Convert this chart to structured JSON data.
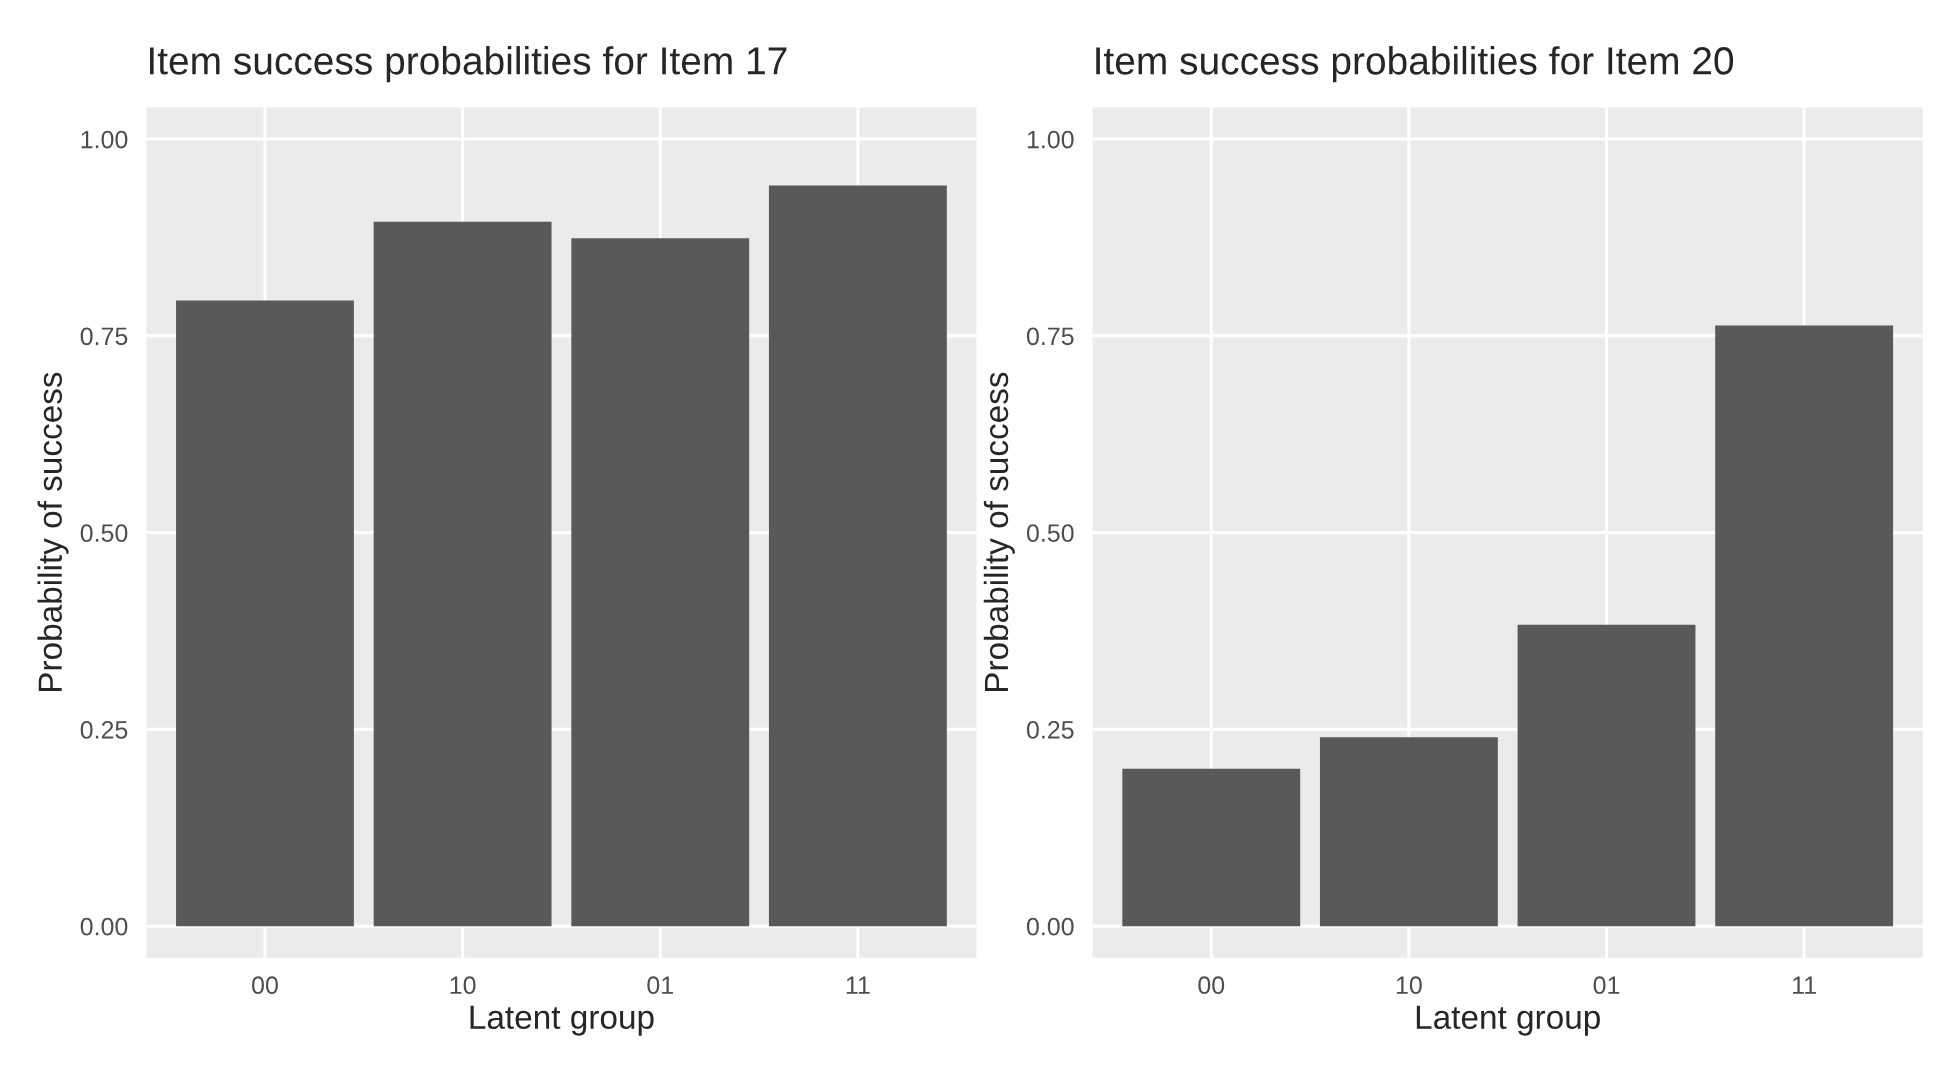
{
  "chart_data": [
    {
      "type": "bar",
      "title": "Item success probabilities for Item 17",
      "xlabel": "Latent group",
      "ylabel": "Probability of success",
      "categories": [
        "00",
        "10",
        "01",
        "11"
      ],
      "values": [
        0.795,
        0.895,
        0.874,
        0.941
      ],
      "color": "#595959",
      "ylim": [
        -0.04,
        1.04
      ],
      "yticks": [
        {
          "value": 0,
          "label": "0.00"
        },
        {
          "value": 0.25,
          "label": "0.25"
        },
        {
          "value": 0.5,
          "label": "0.50"
        },
        {
          "value": 0.75,
          "label": "0.75"
        },
        {
          "value": 1,
          "label": "1.00"
        }
      ],
      "grid": true
    },
    {
      "type": "bar",
      "title": "Item success probabilities for Item 20",
      "xlabel": "Latent group",
      "ylabel": "Probability of success",
      "categories": [
        "00",
        "10",
        "01",
        "11"
      ],
      "values": [
        0.2,
        0.24,
        0.383,
        0.763
      ],
      "color": "#595959",
      "ylim": [
        -0.04,
        1.04
      ],
      "yticks": [
        {
          "value": 0,
          "label": "0.00"
        },
        {
          "value": 0.25,
          "label": "0.25"
        },
        {
          "value": 0.5,
          "label": "0.50"
        },
        {
          "value": 0.75,
          "label": "0.75"
        },
        {
          "value": 1,
          "label": "1.00"
        }
      ],
      "grid": true
    }
  ]
}
